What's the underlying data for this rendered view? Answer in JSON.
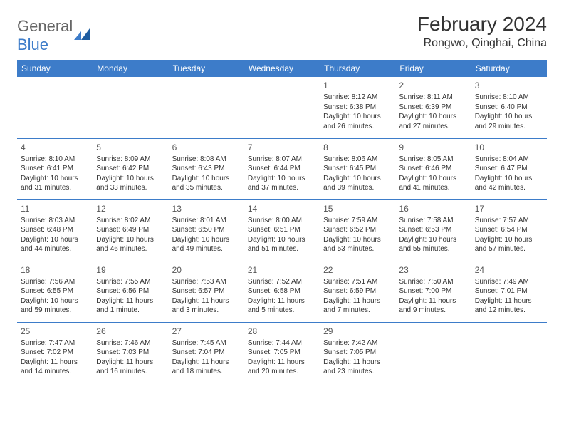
{
  "logo": {
    "general": "General",
    "blue": "Blue"
  },
  "title": "February 2024",
  "location": "Rongwo, Qinghai, China",
  "colors": {
    "header_bg": "#3d7cc9",
    "header_text": "#ffffff",
    "border": "#3d7cc9",
    "text": "#333333",
    "logo_gray": "#666666",
    "logo_blue": "#3d7cc9"
  },
  "weekdays": [
    "Sunday",
    "Monday",
    "Tuesday",
    "Wednesday",
    "Thursday",
    "Friday",
    "Saturday"
  ],
  "weeks": [
    [
      null,
      null,
      null,
      null,
      {
        "n": "1",
        "sr": "Sunrise: 8:12 AM",
        "ss": "Sunset: 6:38 PM",
        "d1": "Daylight: 10 hours",
        "d2": "and 26 minutes."
      },
      {
        "n": "2",
        "sr": "Sunrise: 8:11 AM",
        "ss": "Sunset: 6:39 PM",
        "d1": "Daylight: 10 hours",
        "d2": "and 27 minutes."
      },
      {
        "n": "3",
        "sr": "Sunrise: 8:10 AM",
        "ss": "Sunset: 6:40 PM",
        "d1": "Daylight: 10 hours",
        "d2": "and 29 minutes."
      }
    ],
    [
      {
        "n": "4",
        "sr": "Sunrise: 8:10 AM",
        "ss": "Sunset: 6:41 PM",
        "d1": "Daylight: 10 hours",
        "d2": "and 31 minutes."
      },
      {
        "n": "5",
        "sr": "Sunrise: 8:09 AM",
        "ss": "Sunset: 6:42 PM",
        "d1": "Daylight: 10 hours",
        "d2": "and 33 minutes."
      },
      {
        "n": "6",
        "sr": "Sunrise: 8:08 AM",
        "ss": "Sunset: 6:43 PM",
        "d1": "Daylight: 10 hours",
        "d2": "and 35 minutes."
      },
      {
        "n": "7",
        "sr": "Sunrise: 8:07 AM",
        "ss": "Sunset: 6:44 PM",
        "d1": "Daylight: 10 hours",
        "d2": "and 37 minutes."
      },
      {
        "n": "8",
        "sr": "Sunrise: 8:06 AM",
        "ss": "Sunset: 6:45 PM",
        "d1": "Daylight: 10 hours",
        "d2": "and 39 minutes."
      },
      {
        "n": "9",
        "sr": "Sunrise: 8:05 AM",
        "ss": "Sunset: 6:46 PM",
        "d1": "Daylight: 10 hours",
        "d2": "and 41 minutes."
      },
      {
        "n": "10",
        "sr": "Sunrise: 8:04 AM",
        "ss": "Sunset: 6:47 PM",
        "d1": "Daylight: 10 hours",
        "d2": "and 42 minutes."
      }
    ],
    [
      {
        "n": "11",
        "sr": "Sunrise: 8:03 AM",
        "ss": "Sunset: 6:48 PM",
        "d1": "Daylight: 10 hours",
        "d2": "and 44 minutes."
      },
      {
        "n": "12",
        "sr": "Sunrise: 8:02 AM",
        "ss": "Sunset: 6:49 PM",
        "d1": "Daylight: 10 hours",
        "d2": "and 46 minutes."
      },
      {
        "n": "13",
        "sr": "Sunrise: 8:01 AM",
        "ss": "Sunset: 6:50 PM",
        "d1": "Daylight: 10 hours",
        "d2": "and 49 minutes."
      },
      {
        "n": "14",
        "sr": "Sunrise: 8:00 AM",
        "ss": "Sunset: 6:51 PM",
        "d1": "Daylight: 10 hours",
        "d2": "and 51 minutes."
      },
      {
        "n": "15",
        "sr": "Sunrise: 7:59 AM",
        "ss": "Sunset: 6:52 PM",
        "d1": "Daylight: 10 hours",
        "d2": "and 53 minutes."
      },
      {
        "n": "16",
        "sr": "Sunrise: 7:58 AM",
        "ss": "Sunset: 6:53 PM",
        "d1": "Daylight: 10 hours",
        "d2": "and 55 minutes."
      },
      {
        "n": "17",
        "sr": "Sunrise: 7:57 AM",
        "ss": "Sunset: 6:54 PM",
        "d1": "Daylight: 10 hours",
        "d2": "and 57 minutes."
      }
    ],
    [
      {
        "n": "18",
        "sr": "Sunrise: 7:56 AM",
        "ss": "Sunset: 6:55 PM",
        "d1": "Daylight: 10 hours",
        "d2": "and 59 minutes."
      },
      {
        "n": "19",
        "sr": "Sunrise: 7:55 AM",
        "ss": "Sunset: 6:56 PM",
        "d1": "Daylight: 11 hours",
        "d2": "and 1 minute."
      },
      {
        "n": "20",
        "sr": "Sunrise: 7:53 AM",
        "ss": "Sunset: 6:57 PM",
        "d1": "Daylight: 11 hours",
        "d2": "and 3 minutes."
      },
      {
        "n": "21",
        "sr": "Sunrise: 7:52 AM",
        "ss": "Sunset: 6:58 PM",
        "d1": "Daylight: 11 hours",
        "d2": "and 5 minutes."
      },
      {
        "n": "22",
        "sr": "Sunrise: 7:51 AM",
        "ss": "Sunset: 6:59 PM",
        "d1": "Daylight: 11 hours",
        "d2": "and 7 minutes."
      },
      {
        "n": "23",
        "sr": "Sunrise: 7:50 AM",
        "ss": "Sunset: 7:00 PM",
        "d1": "Daylight: 11 hours",
        "d2": "and 9 minutes."
      },
      {
        "n": "24",
        "sr": "Sunrise: 7:49 AM",
        "ss": "Sunset: 7:01 PM",
        "d1": "Daylight: 11 hours",
        "d2": "and 12 minutes."
      }
    ],
    [
      {
        "n": "25",
        "sr": "Sunrise: 7:47 AM",
        "ss": "Sunset: 7:02 PM",
        "d1": "Daylight: 11 hours",
        "d2": "and 14 minutes."
      },
      {
        "n": "26",
        "sr": "Sunrise: 7:46 AM",
        "ss": "Sunset: 7:03 PM",
        "d1": "Daylight: 11 hours",
        "d2": "and 16 minutes."
      },
      {
        "n": "27",
        "sr": "Sunrise: 7:45 AM",
        "ss": "Sunset: 7:04 PM",
        "d1": "Daylight: 11 hours",
        "d2": "and 18 minutes."
      },
      {
        "n": "28",
        "sr": "Sunrise: 7:44 AM",
        "ss": "Sunset: 7:05 PM",
        "d1": "Daylight: 11 hours",
        "d2": "and 20 minutes."
      },
      {
        "n": "29",
        "sr": "Sunrise: 7:42 AM",
        "ss": "Sunset: 7:05 PM",
        "d1": "Daylight: 11 hours",
        "d2": "and 23 minutes."
      },
      null,
      null
    ]
  ]
}
